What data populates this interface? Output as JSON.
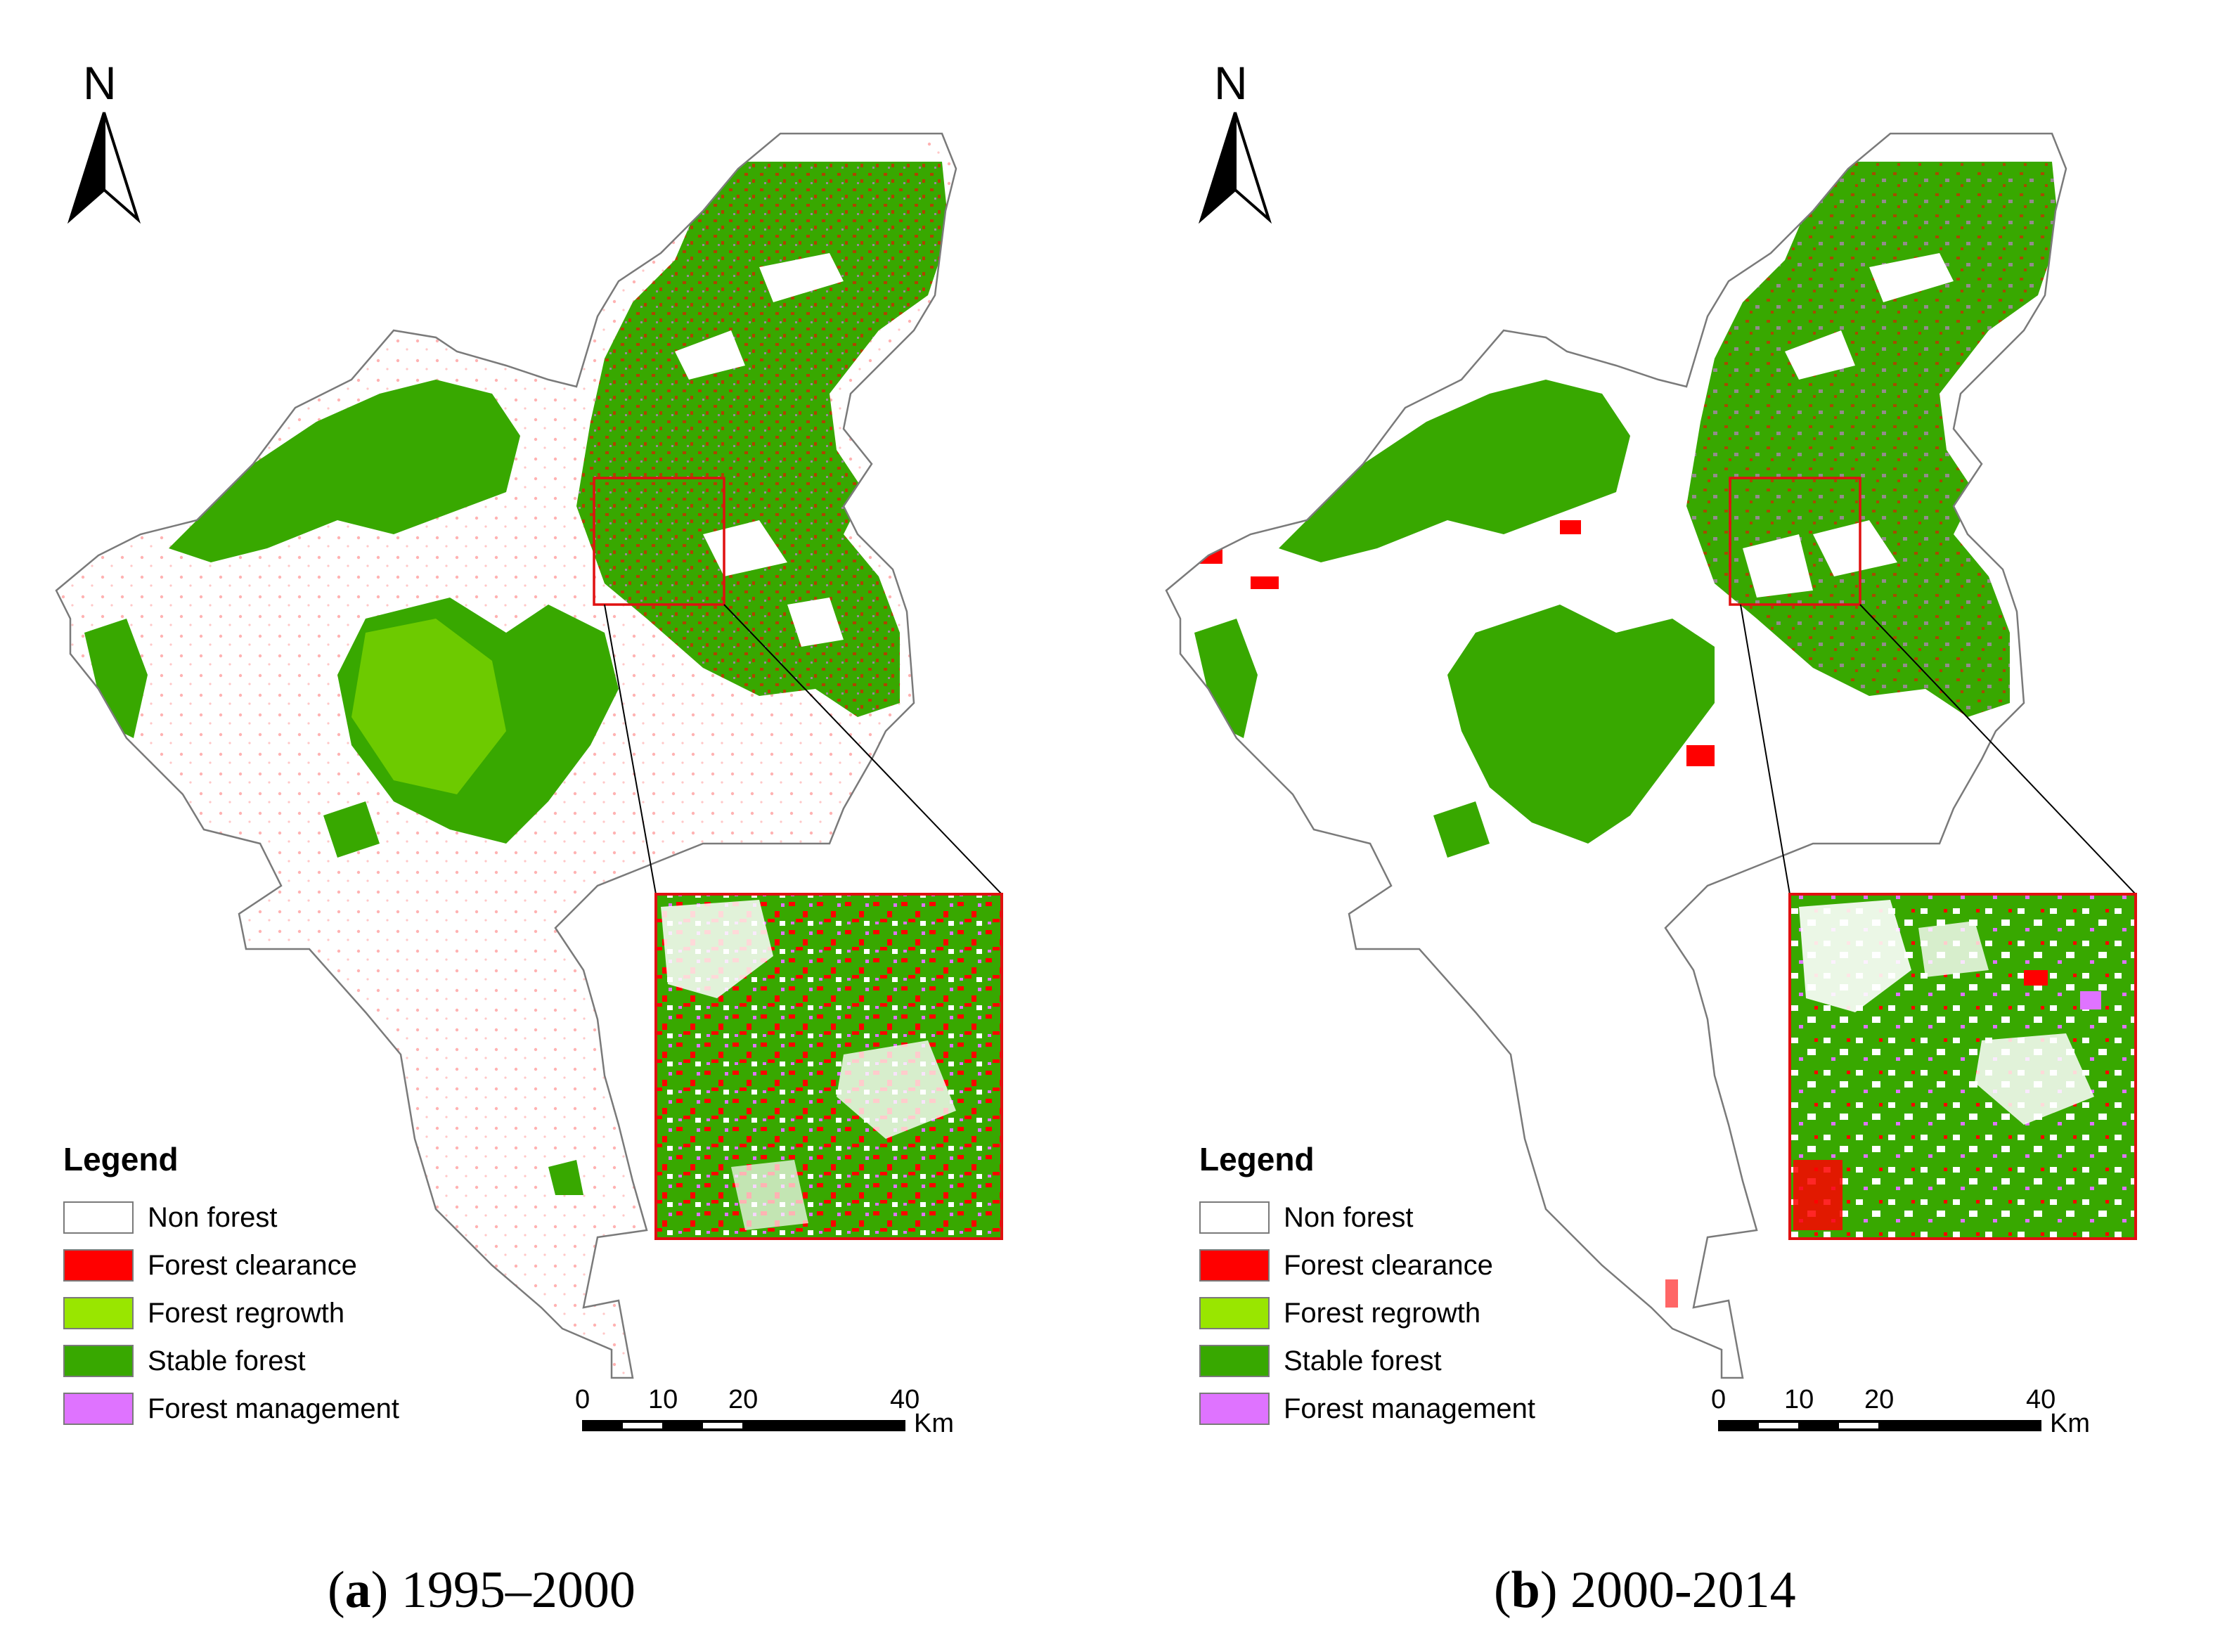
{
  "panels": [
    {
      "id": "a",
      "caption_letter": "a",
      "caption_period": "1995–2000",
      "north_label": "N",
      "legend_title": "Legend",
      "scale": {
        "ticks": [
          "0",
          "10",
          "20",
          "40"
        ],
        "unit": "Km"
      }
    },
    {
      "id": "b",
      "caption_letter": "b",
      "caption_period": "2000-2014",
      "north_label": "N",
      "legend_title": "Legend",
      "scale": {
        "ticks": [
          "0",
          "10",
          "20",
          "40"
        ],
        "unit": "Km"
      }
    }
  ],
  "legend_items": [
    {
      "label": "Non forest",
      "color": "#ffffff"
    },
    {
      "label": "Forest clearance",
      "color": "#ff0000"
    },
    {
      "label": "Forest regrowth",
      "color": "#99e600"
    },
    {
      "label": "Stable forest",
      "color": "#38a800"
    },
    {
      "label": "Forest management",
      "color": "#df73ff"
    }
  ],
  "colors": {
    "non_forest": "#ffffff",
    "clearance": "#ff0000",
    "regrowth": "#99e600",
    "stable": "#38a800",
    "management": "#df73ff",
    "boundary": "#7a7a7a",
    "inset_frame": "#e01010"
  }
}
